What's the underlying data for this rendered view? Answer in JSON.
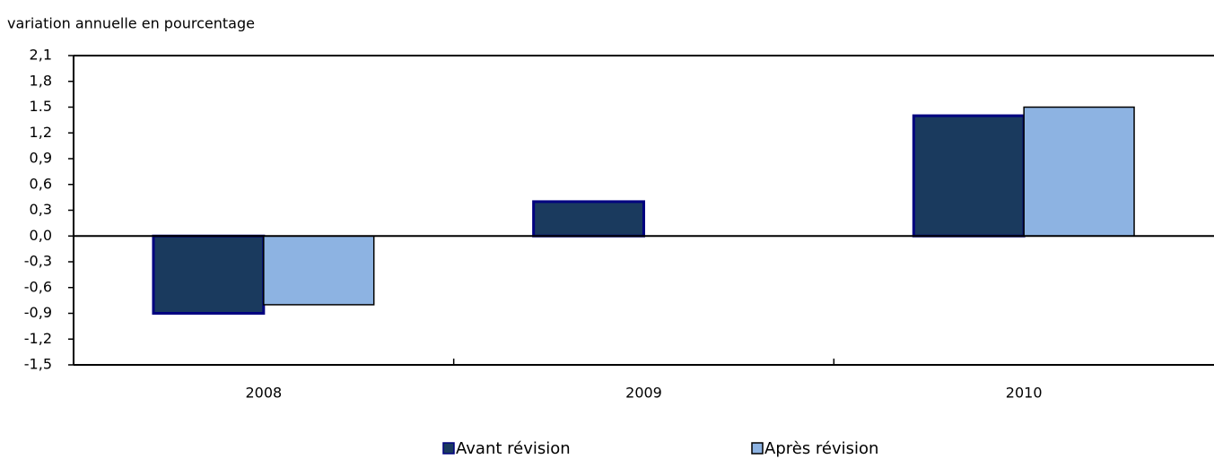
{
  "chart_data": {
    "type": "bar",
    "y_axis_label": "variation annuelle en pourcentage",
    "categories": [
      "2008",
      "2009",
      "2010"
    ],
    "series": [
      {
        "name": "Avant révision",
        "color": "#1a3a5e",
        "values": [
          -0.9,
          0.4,
          1.4
        ]
      },
      {
        "name": "Après révision",
        "color": "#8db3e2",
        "values": [
          -0.8,
          0,
          1.5
        ]
      }
    ],
    "ylim": [
      -1.5,
      2.1
    ],
    "yticks": [
      {
        "value": 2.1,
        "label": "2,1"
      },
      {
        "value": 1.8,
        "label": "1,8"
      },
      {
        "value": 1.5,
        "label": "1.5"
      },
      {
        "value": 1.2,
        "label": "1,2"
      },
      {
        "value": 0.9,
        "label": "0,9"
      },
      {
        "value": 0.6,
        "label": "0,6"
      },
      {
        "value": 0.3,
        "label": "0,3"
      },
      {
        "value": 0,
        "label": "0,0"
      },
      {
        "value": -0.3,
        "label": "-0,3"
      },
      {
        "value": -0.6,
        "label": "-0,6"
      },
      {
        "value": -0.9,
        "label": "-0,9"
      },
      {
        "value": -1.2,
        "label": "-1,2"
      },
      {
        "value": -1.5,
        "label": "-1,5"
      }
    ],
    "legend": "bottom"
  }
}
